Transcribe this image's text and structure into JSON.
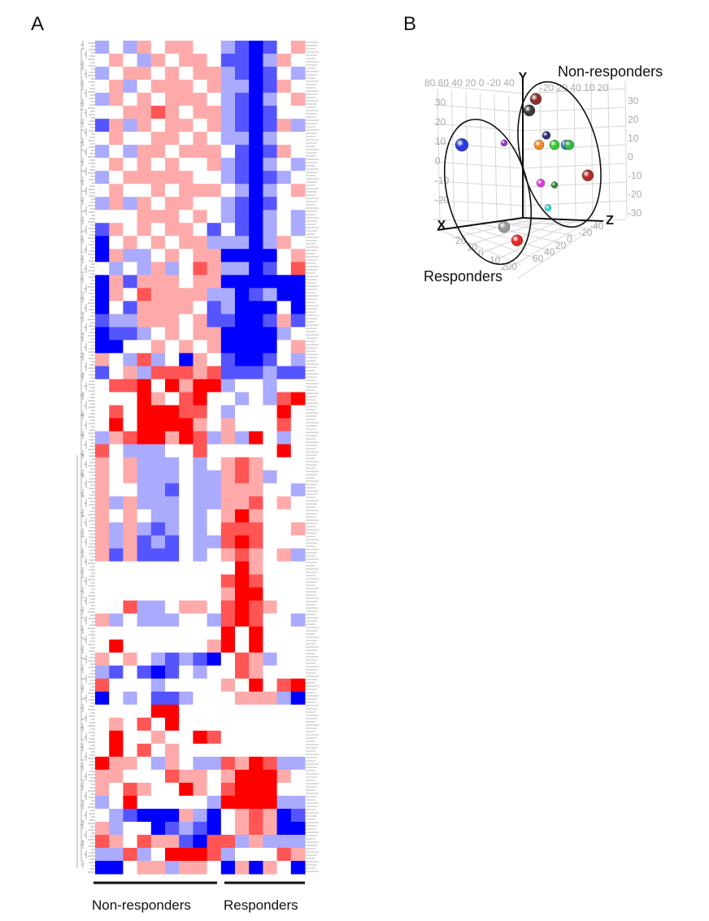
{
  "panels": {
    "a_label": "A",
    "b_label": "B"
  },
  "chart_data": [
    {
      "type": "heatmap",
      "panel": "A",
      "colors": {
        "low": "#0000ff",
        "mid": "#ffffff",
        "high": "#ff0000"
      },
      "value_range": [
        -3,
        3
      ],
      "column_groups": [
        {
          "label": "Non-responders",
          "columns": 9
        },
        {
          "label": "Responders",
          "columns": 6
        }
      ],
      "dendrogram": "rows",
      "values": [
        [
          -1,
          0,
          -1,
          1,
          0,
          1,
          1,
          0,
          0,
          -1,
          -2,
          -3,
          -2,
          0,
          1
        ],
        [
          0,
          1,
          0,
          -1,
          1,
          0,
          1,
          1,
          0,
          -2,
          -2,
          -3,
          -1,
          1,
          0
        ],
        [
          -1,
          0,
          1,
          1,
          0,
          1,
          0,
          1,
          1,
          -1,
          -2,
          -3,
          -2,
          0,
          -1
        ],
        [
          0,
          1,
          -1,
          0,
          1,
          1,
          1,
          0,
          1,
          -1,
          -1,
          -3,
          -2,
          1,
          0
        ],
        [
          -1,
          1,
          0,
          1,
          0,
          1,
          1,
          1,
          0,
          -1,
          -2,
          -3,
          -1,
          0,
          1
        ],
        [
          0,
          0,
          1,
          1,
          2,
          1,
          0,
          1,
          1,
          -1,
          -2,
          -3,
          -2,
          0,
          0
        ],
        [
          -2,
          1,
          -1,
          1,
          0,
          1,
          1,
          0,
          1,
          -1,
          -2,
          -3,
          -2,
          1,
          -1
        ],
        [
          0,
          1,
          0,
          0,
          1,
          1,
          0,
          1,
          0,
          -1,
          -1,
          -3,
          -1,
          0,
          0
        ],
        [
          -1,
          0,
          -1,
          1,
          1,
          0,
          1,
          1,
          1,
          0,
          -2,
          -3,
          -2,
          1,
          0
        ],
        [
          0,
          1,
          0,
          1,
          0,
          1,
          0,
          0,
          1,
          -1,
          -2,
          -3,
          -1,
          0,
          -1
        ],
        [
          -1,
          0,
          1,
          1,
          1,
          1,
          1,
          0,
          0,
          -1,
          -2,
          -3,
          -2,
          -1,
          0
        ],
        [
          0,
          1,
          0,
          0,
          1,
          0,
          1,
          1,
          1,
          0,
          -1,
          -3,
          -1,
          0,
          1
        ],
        [
          -1,
          1,
          -1,
          1,
          0,
          1,
          1,
          0,
          0,
          -1,
          -2,
          -3,
          -2,
          0,
          0
        ],
        [
          0,
          0,
          0,
          1,
          1,
          1,
          0,
          1,
          0,
          -1,
          -2,
          -3,
          -1,
          0,
          -1
        ],
        [
          -2,
          1,
          0,
          1,
          0,
          1,
          1,
          0,
          -2,
          0,
          -2,
          -3,
          -1,
          0,
          -1
        ],
        [
          -3,
          0,
          1,
          0,
          1,
          0,
          1,
          1,
          -1,
          -1,
          -1,
          -3,
          -1,
          1,
          0
        ],
        [
          -3,
          1,
          -1,
          -1,
          0,
          1,
          0,
          1,
          1,
          -3,
          -3,
          -3,
          -3,
          0,
          1
        ],
        [
          0,
          -1,
          0,
          -1,
          1,
          -1,
          0,
          2,
          1,
          -1,
          -1,
          -3,
          -2,
          0,
          2
        ],
        [
          -3,
          1,
          -2,
          1,
          1,
          1,
          0,
          1,
          1,
          -3,
          -3,
          -3,
          -3,
          -3,
          -3
        ],
        [
          -3,
          1,
          0,
          2,
          1,
          1,
          1,
          1,
          -1,
          -1,
          -3,
          -2,
          -1,
          -3,
          -3
        ],
        [
          -3,
          0,
          -2,
          1,
          1,
          1,
          1,
          0,
          -2,
          -1,
          -3,
          -3,
          -3,
          0,
          -3
        ],
        [
          -2,
          -1,
          -1,
          1,
          1,
          1,
          0,
          1,
          -2,
          -2,
          -3,
          -3,
          -2,
          1,
          -2
        ],
        [
          -3,
          -2,
          -2,
          -1,
          0,
          1,
          0,
          1,
          1,
          -3,
          -3,
          -3,
          -3,
          -1,
          0
        ],
        [
          -3,
          -3,
          0,
          0,
          1,
          0,
          1,
          0,
          1,
          -3,
          -3,
          -3,
          -3,
          0,
          1
        ],
        [
          1,
          0,
          -1,
          2,
          -1,
          0,
          -3,
          1,
          0,
          -2,
          -3,
          -3,
          -2,
          0,
          -1
        ],
        [
          -2,
          0,
          1,
          -1,
          2,
          2,
          2,
          1,
          2,
          -2,
          -2,
          -2,
          -1,
          -2,
          -2
        ],
        [
          0,
          2,
          2,
          3,
          0,
          3,
          1,
          3,
          3,
          -1,
          0,
          0,
          -1,
          0,
          0
        ],
        [
          0,
          0,
          0,
          3,
          1,
          0,
          2,
          3,
          0,
          0,
          -1,
          0,
          -1,
          2,
          3
        ],
        [
          0,
          2,
          0,
          3,
          3,
          3,
          2,
          2,
          0,
          -1,
          0,
          0,
          0,
          3,
          0
        ],
        [
          0,
          3,
          0,
          3,
          3,
          3,
          3,
          1,
          0,
          1,
          0,
          0,
          0,
          2,
          0
        ],
        [
          -1,
          1,
          2,
          3,
          3,
          1,
          3,
          2,
          -1,
          1,
          -1,
          3,
          0,
          -1,
          0
        ],
        [
          2,
          0,
          -1,
          -1,
          -1,
          0,
          0,
          2,
          0,
          0,
          0,
          0,
          0,
          3,
          0
        ],
        [
          1,
          0,
          1,
          -1,
          -1,
          -1,
          0,
          -1,
          0,
          1,
          2,
          1,
          0,
          0,
          0
        ],
        [
          1,
          0,
          1,
          -1,
          -1,
          -1,
          0,
          -1,
          -1,
          1,
          2,
          1,
          -1,
          0,
          0
        ],
        [
          1,
          0,
          0,
          -1,
          -1,
          -2,
          0,
          -1,
          -1,
          1,
          1,
          1,
          0,
          0,
          -1
        ],
        [
          1,
          -1,
          1,
          -1,
          -1,
          -1,
          0,
          -1,
          -1,
          1,
          1,
          2,
          0,
          1,
          0
        ],
        [
          1,
          0,
          1,
          0,
          -1,
          -1,
          0,
          -1,
          0,
          1,
          3,
          1,
          0,
          0,
          0
        ],
        [
          1,
          -1,
          1,
          -1,
          -2,
          -1,
          0,
          -1,
          0,
          2,
          2,
          2,
          0,
          0,
          1
        ],
        [
          1,
          -1,
          1,
          -2,
          -1,
          -2,
          0,
          -1,
          -1,
          2,
          3,
          2,
          0,
          0,
          0
        ],
        [
          1,
          -2,
          1,
          -2,
          -2,
          -2,
          0,
          -1,
          0,
          1,
          2,
          1,
          0,
          1,
          -1
        ],
        [
          0,
          0,
          0,
          0,
          0,
          0,
          0,
          0,
          0,
          0,
          3,
          1,
          0,
          0,
          0
        ],
        [
          0,
          0,
          0,
          0,
          0,
          0,
          0,
          0,
          0,
          2,
          3,
          2,
          0,
          0,
          0
        ],
        [
          0,
          0,
          0,
          0,
          0,
          0,
          0,
          0,
          0,
          1,
          3,
          3,
          0,
          0,
          0
        ],
        [
          0,
          0,
          2,
          -1,
          -1,
          0,
          1,
          1,
          0,
          2,
          3,
          2,
          1,
          0,
          0
        ],
        [
          1,
          -1,
          0,
          -1,
          -1,
          -1,
          0,
          0,
          -1,
          2,
          3,
          2,
          0,
          0,
          -1
        ],
        [
          0,
          0,
          0,
          0,
          0,
          0,
          0,
          0,
          0,
          3,
          0,
          3,
          0,
          0,
          0
        ],
        [
          0,
          3,
          0,
          0,
          0,
          0,
          0,
          0,
          1,
          3,
          0,
          3,
          0,
          0,
          0
        ],
        [
          1,
          0,
          1,
          0,
          -1,
          -2,
          -1,
          -2,
          -3,
          0,
          2,
          1,
          -1,
          0,
          0
        ],
        [
          -1,
          -2,
          0,
          -2,
          -3,
          -2,
          0,
          -1,
          0,
          0,
          2,
          1,
          0,
          0,
          0
        ],
        [
          2,
          0,
          0,
          0,
          -1,
          0,
          0,
          0,
          0,
          1,
          0,
          3,
          0,
          2,
          3
        ],
        [
          -3,
          0,
          -1,
          0,
          -2,
          -2,
          -1,
          0,
          0,
          0,
          1,
          1,
          1,
          -1,
          -3
        ],
        [
          0,
          0,
          0,
          0,
          3,
          3,
          0,
          0,
          0,
          0,
          0,
          0,
          0,
          0,
          0
        ],
        [
          0,
          1,
          0,
          2,
          0,
          3,
          0,
          0,
          0,
          0,
          0,
          0,
          0,
          0,
          0
        ],
        [
          0,
          3,
          0,
          0,
          1,
          0,
          0,
          3,
          2,
          0,
          0,
          0,
          0,
          0,
          0
        ],
        [
          0,
          3,
          0,
          2,
          0,
          1,
          0,
          0,
          0,
          0,
          0,
          0,
          0,
          0,
          0
        ],
        [
          3,
          1,
          1,
          0,
          -1,
          1,
          0,
          -1,
          -1,
          2,
          1,
          3,
          2,
          -1,
          -1
        ],
        [
          1,
          1,
          0,
          0,
          0,
          2,
          1,
          1,
          0,
          1,
          3,
          3,
          3,
          1,
          0
        ],
        [
          1,
          0,
          2,
          1,
          0,
          0,
          3,
          1,
          0,
          2,
          3,
          3,
          3,
          0,
          0
        ],
        [
          -1,
          0,
          3,
          0,
          0,
          0,
          0,
          0,
          -1,
          3,
          3,
          3,
          3,
          -1,
          -1
        ],
        [
          0,
          -1,
          -2,
          -3,
          -3,
          -3,
          1,
          -1,
          -3,
          0,
          1,
          2,
          1,
          -3,
          -2
        ],
        [
          1,
          -1,
          0,
          0,
          -3,
          -2,
          -1,
          -2,
          -3,
          0,
          1,
          2,
          1,
          -3,
          -3
        ],
        [
          2,
          1,
          0,
          2,
          1,
          1,
          -2,
          -3,
          2,
          2,
          -1,
          1,
          -1,
          -1,
          -1
        ],
        [
          -1,
          -1,
          2,
          -1,
          0,
          3,
          3,
          3,
          2,
          -1,
          0,
          0,
          0,
          2,
          1
        ],
        [
          -3,
          -3,
          0,
          1,
          1,
          -1,
          1,
          1,
          0,
          -3,
          1,
          -3,
          1,
          0,
          -3
        ]
      ]
    },
    {
      "type": "scatter3d",
      "panel": "B",
      "axes": {
        "x": "X",
        "y": "Y",
        "z": "Z"
      },
      "y_ticks": [
        "30",
        "20",
        "10",
        "0",
        "-10",
        "-20",
        "-30"
      ],
      "left_ticks": [
        "30",
        "20",
        "10",
        "0",
        "-10",
        "-20"
      ],
      "top_ticks_left": "80 60 40 20 0   -20 40",
      "top_ticks_right": "-20 20 40   10  20",
      "bottom_ticks_x": [
        "20",
        "10",
        "0",
        "10",
        "200"
      ],
      "bottom_ticks_z": [
        "60",
        "40",
        "20",
        "0",
        "-20",
        "-40"
      ],
      "ylim": [
        -30,
        30
      ],
      "groups": [
        {
          "label": "Non-responders"
        },
        {
          "label": "Responders"
        }
      ],
      "points": [
        {
          "color": "#8b3030",
          "group": "Non-responders",
          "y": 32
        },
        {
          "color": "#3a3a3a",
          "group": "Non-responders",
          "y": 26
        },
        {
          "color": "#2d2d80",
          "group": "Non-responders",
          "y": 13
        },
        {
          "color": "#9b30d0",
          "group": "Responders",
          "y": 9
        },
        {
          "color": "#2a3adf",
          "group": "Responders",
          "y": 8
        },
        {
          "color": "#ef8a2a",
          "group": "Non-responders",
          "y": 8
        },
        {
          "color": "#33cc33",
          "group": "Non-responders",
          "y": 8
        },
        {
          "color": "#3a7ad8",
          "group": "Non-responders",
          "y": 8
        },
        {
          "color": "#33bb44",
          "group": "Non-responders",
          "y": 8
        },
        {
          "color": "#b22a2a",
          "group": "Non-responders",
          "y": -8
        },
        {
          "color": "#e03be0",
          "group": "Non-responders",
          "y": -12
        },
        {
          "color": "#2a8a2a",
          "group": "Non-responders",
          "y": -13
        },
        {
          "color": "#30dde0",
          "group": "Non-responders",
          "y": -25
        },
        {
          "color": "#9a9a9a",
          "group": "Responders",
          "y": -35
        },
        {
          "color": "#e02a2a",
          "group": "Responders",
          "y": -42
        }
      ]
    }
  ]
}
